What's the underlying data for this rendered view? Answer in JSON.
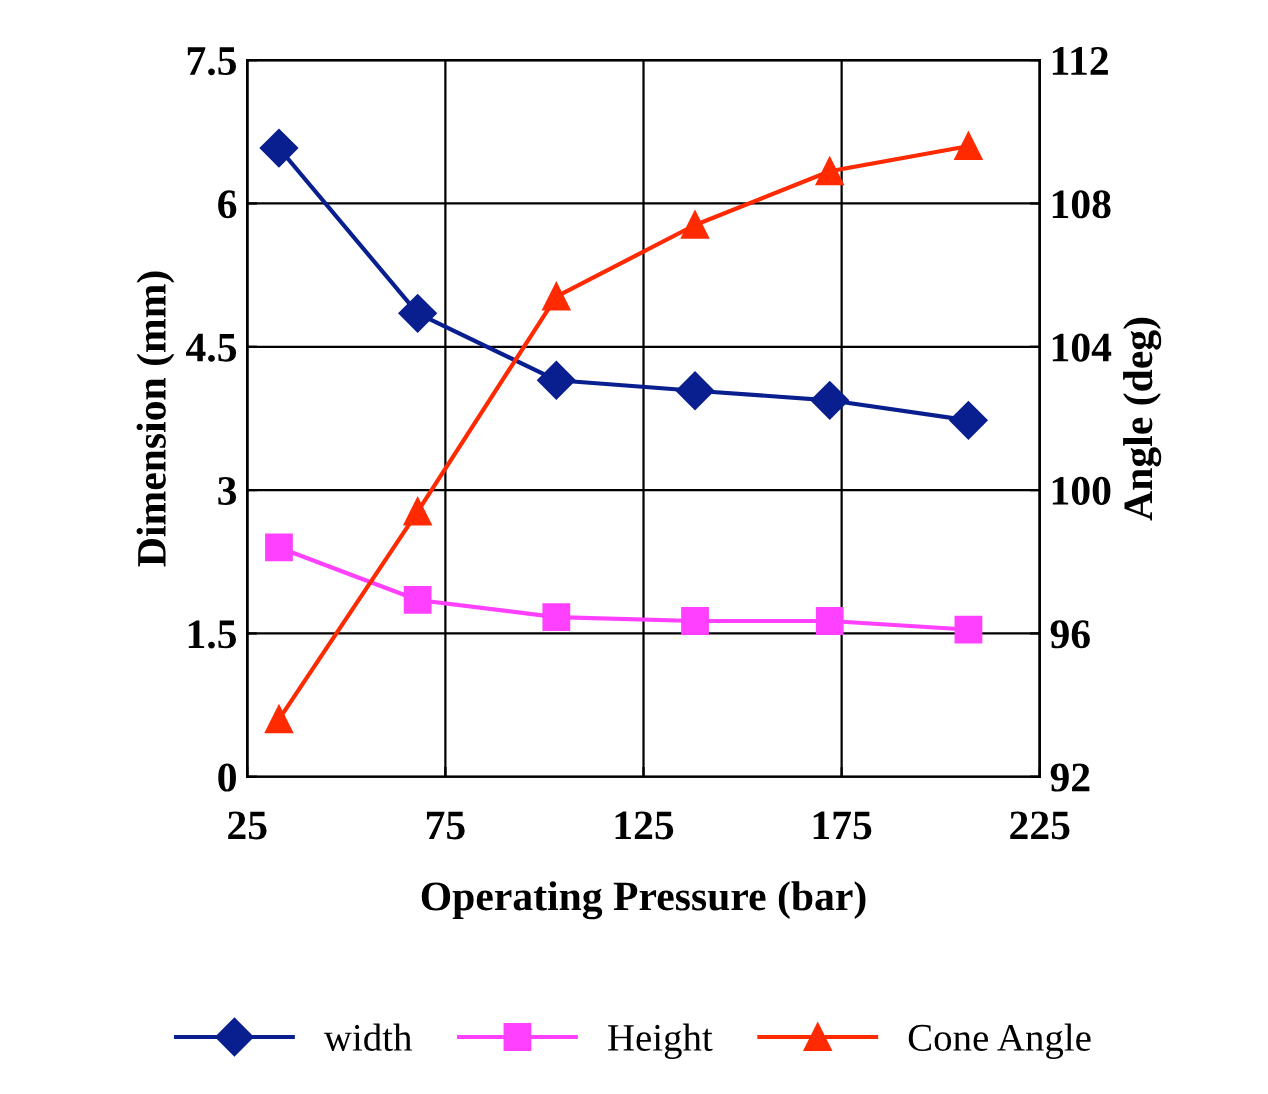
{
  "chart_data": {
    "type": "line",
    "xlabel": "Operating Pressure (bar)",
    "ylabel": "Dimension (mm)",
    "y2label": "Angle (deg)",
    "x": [
      33,
      68,
      103,
      138,
      172,
      207
    ],
    "series": [
      {
        "name": "width",
        "color": "#0a1f8f",
        "marker": "diamond",
        "values": [
          6.58,
          4.85,
          4.15,
          4.04,
          3.94,
          3.73
        ]
      },
      {
        "name": "Height",
        "color": "#ff40ff",
        "marker": "square",
        "values": [
          2.4,
          1.85,
          1.67,
          1.63,
          1.63,
          1.54
        ]
      },
      {
        "name": "Cone Angle",
        "color": "#ff2a00",
        "marker": "triangle",
        "axis": "y2",
        "values": [
          93.6,
          99.4,
          105.4,
          107.4,
          108.9,
          109.6
        ]
      }
    ],
    "xlim": [
      25,
      225
    ],
    "xticks": [
      25,
      75,
      125,
      175,
      225
    ],
    "ylim": [
      0,
      7.5
    ],
    "yticks": [
      0,
      1.5,
      3,
      4.5,
      6,
      7.5
    ],
    "y2lim": [
      92,
      112
    ],
    "y2ticks": [
      92,
      96,
      100,
      104,
      108,
      112
    ],
    "grid": true,
    "legend": "bottom",
    "line_style": "solid"
  }
}
